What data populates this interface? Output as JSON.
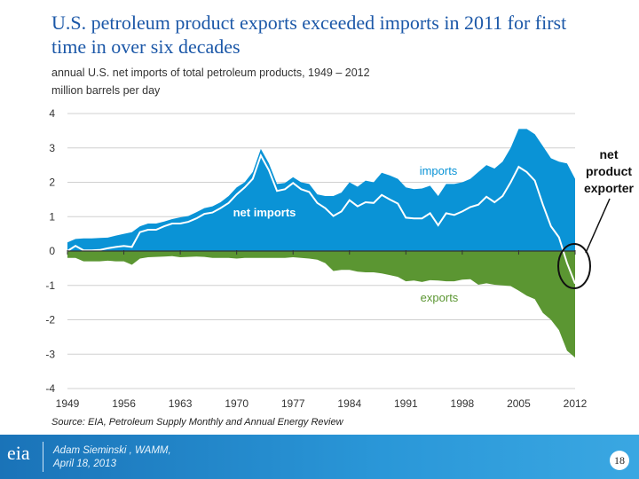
{
  "title": "U.S. petroleum product exports exceeded imports in 2011 for first time in over six decades",
  "subtitle": "annual U.S. net imports of total petroleum products, 1949 – 2012",
  "units": "million barrels per day",
  "source": "Source:  EIA, Petroleum Supply Monthly and Annual Energy Review",
  "footer": {
    "logo": "eia",
    "presenter": "Adam Sieminski , WAMM,",
    "date": "April 18, 2013",
    "page": "18"
  },
  "colors": {
    "imports": "#0a93d6",
    "exports": "#5b9632",
    "net": "#ffffff",
    "title": "#1c58a8",
    "footer": "#1f86c8"
  },
  "chart_data": {
    "type": "area",
    "ylim": [
      -4,
      4
    ],
    "yticks": [
      "4",
      "3",
      "2",
      "1",
      "0",
      "-1",
      "-2",
      "-3",
      "-4"
    ],
    "xticks": [
      "1949",
      "1956",
      "1963",
      "1970",
      "1977",
      "1984",
      "1991",
      "1998",
      "2005",
      "2012"
    ],
    "grid": true,
    "years": [
      1949,
      1950,
      1951,
      1952,
      1953,
      1954,
      1955,
      1956,
      1957,
      1958,
      1959,
      1960,
      1961,
      1962,
      1963,
      1964,
      1965,
      1966,
      1967,
      1968,
      1969,
      1970,
      1971,
      1972,
      1973,
      1974,
      1975,
      1976,
      1977,
      1978,
      1979,
      1980,
      1981,
      1982,
      1983,
      1984,
      1985,
      1986,
      1987,
      1988,
      1989,
      1990,
      1991,
      1992,
      1993,
      1994,
      1995,
      1996,
      1997,
      1998,
      1999,
      2000,
      2001,
      2002,
      2003,
      2004,
      2005,
      2006,
      2007,
      2008,
      2009,
      2010,
      2011,
      2012
    ],
    "series": [
      {
        "name": "imports",
        "values": [
          0.25,
          0.35,
          0.37,
          0.37,
          0.38,
          0.39,
          0.45,
          0.5,
          0.55,
          0.72,
          0.8,
          0.8,
          0.86,
          0.93,
          0.98,
          1.02,
          1.13,
          1.25,
          1.3,
          1.42,
          1.6,
          1.85,
          2.0,
          2.3,
          2.97,
          2.55,
          1.95,
          1.98,
          2.15,
          2.0,
          1.95,
          1.65,
          1.6,
          1.6,
          1.7,
          2.0,
          1.87,
          2.05,
          2.0,
          2.28,
          2.2,
          2.1,
          1.85,
          1.8,
          1.82,
          1.9,
          1.6,
          1.95,
          1.95,
          2.0,
          2.1,
          2.3,
          2.5,
          2.4,
          2.6,
          3.0,
          3.55,
          3.55,
          3.4,
          3.05,
          2.7,
          2.6,
          2.55,
          2.1
        ]
      },
      {
        "name": "exports",
        "values": [
          -0.2,
          -0.2,
          -0.3,
          -0.3,
          -0.3,
          -0.28,
          -0.3,
          -0.3,
          -0.4,
          -0.22,
          -0.18,
          -0.17,
          -0.16,
          -0.15,
          -0.18,
          -0.17,
          -0.16,
          -0.17,
          -0.2,
          -0.2,
          -0.2,
          -0.22,
          -0.2,
          -0.2,
          -0.2,
          -0.2,
          -0.2,
          -0.2,
          -0.18,
          -0.2,
          -0.22,
          -0.25,
          -0.35,
          -0.58,
          -0.55,
          -0.55,
          -0.6,
          -0.62,
          -0.62,
          -0.65,
          -0.7,
          -0.75,
          -0.88,
          -0.86,
          -0.9,
          -0.85,
          -0.86,
          -0.88,
          -0.88,
          -0.83,
          -0.82,
          -0.98,
          -0.94,
          -0.98,
          -1.0,
          -1.02,
          -1.15,
          -1.3,
          -1.4,
          -1.8,
          -2.0,
          -2.3,
          -2.9,
          -3.1
        ]
      },
      {
        "name": "net imports",
        "values": [
          0.0,
          0.15,
          0.02,
          0.02,
          0.03,
          0.08,
          0.12,
          0.15,
          0.12,
          0.55,
          0.62,
          0.62,
          0.72,
          0.8,
          0.8,
          0.85,
          0.95,
          1.08,
          1.12,
          1.25,
          1.4,
          1.65,
          1.85,
          2.1,
          2.78,
          2.35,
          1.75,
          1.8,
          1.98,
          1.8,
          1.72,
          1.4,
          1.25,
          1.02,
          1.15,
          1.48,
          1.3,
          1.42,
          1.4,
          1.63,
          1.5,
          1.38,
          0.97,
          0.95,
          0.95,
          1.1,
          0.75,
          1.1,
          1.05,
          1.15,
          1.28,
          1.35,
          1.58,
          1.42,
          1.6,
          2.0,
          2.45,
          2.3,
          2.05,
          1.35,
          0.72,
          0.4,
          -0.35,
          -0.95
        ]
      }
    ],
    "annotation": "net product exporter"
  }
}
